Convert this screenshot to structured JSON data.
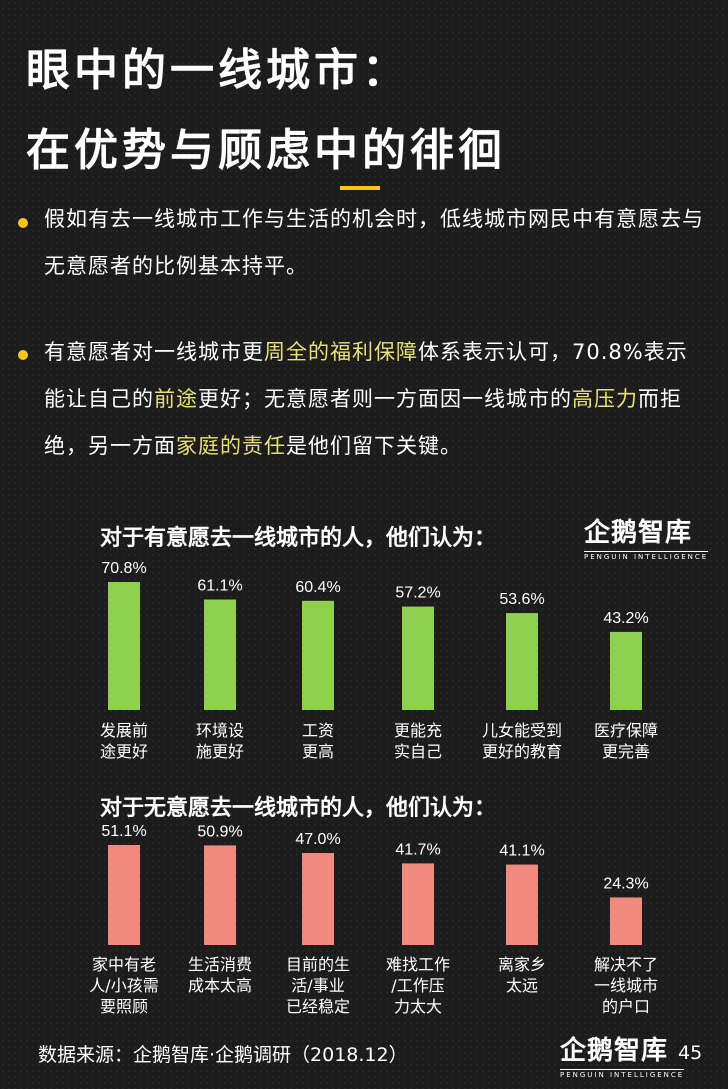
{
  "header": {
    "title_line1": "眼中的一线城市：",
    "title_line2": "在优势与顾虑中的徘徊",
    "accent_color": "#f5c518"
  },
  "bullets": [
    {
      "segments": [
        {
          "text": "假如有去一线城市工作与生活的机会时，低线城市网民中有意愿去与无意愿者的比例基本持平。",
          "highlight": false
        }
      ]
    },
    {
      "segments": [
        {
          "text": "有意愿者对一线城市更",
          "highlight": false
        },
        {
          "text": "周全的福利保障",
          "highlight": true
        },
        {
          "text": "体系表示认可，70.8%表示能让自己的",
          "highlight": false
        },
        {
          "text": "前途",
          "highlight": true
        },
        {
          "text": "更好；无意愿者则一方面因一线城市的",
          "highlight": false
        },
        {
          "text": "高压力",
          "highlight": true
        },
        {
          "text": "而拒绝，另一方面",
          "highlight": false
        },
        {
          "text": "家庭的责任",
          "highlight": true
        },
        {
          "text": "是他们留下关键。",
          "highlight": false
        }
      ]
    }
  ],
  "logo": {
    "name": "企鹅智库",
    "sub": "PENGUIN INTELLIGENCE"
  },
  "chart_data": [
    {
      "type": "bar",
      "title": "对于有意愿去一线城市的人，他们认为：",
      "categories": [
        "发展前\n途更好",
        "环境设\n施更好",
        "工资\n更高",
        "更能充\n实自己",
        "儿女能受到\n更好的教育",
        "医疗保障\n更完善"
      ],
      "values": [
        70.8,
        61.1,
        60.4,
        57.2,
        53.6,
        43.2
      ],
      "value_labels": [
        "70.8%",
        "61.1%",
        "60.4%",
        "57.2%",
        "53.6%",
        "43.2%"
      ],
      "color": "#8fd14f",
      "ylim": [
        0,
        70.8
      ]
    },
    {
      "type": "bar",
      "title": "对于无意愿去一线城市的人，他们认为：",
      "categories": [
        "家中有老\n人/小孩需\n要照顾",
        "生活消费\n成本太高",
        "目前的生\n活/事业\n已经稳定",
        "难找工作\n/工作压\n力太大",
        "离家乡\n太远",
        "解决不了\n一线城市\n的户口"
      ],
      "values": [
        51.1,
        50.9,
        47.0,
        41.7,
        41.1,
        24.3
      ],
      "value_labels": [
        "51.1%",
        "50.9%",
        "47.0%",
        "41.7%",
        "41.1%",
        "24.3%"
      ],
      "color": "#f08a7e",
      "ylim": [
        0,
        51.1
      ]
    }
  ],
  "footer": {
    "source": "数据来源：企鹅智库·企鹅调研（2018.12）",
    "page_number": "45"
  }
}
